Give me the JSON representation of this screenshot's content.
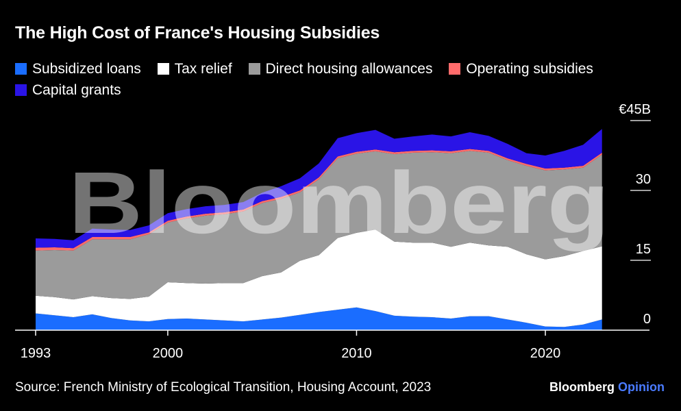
{
  "title": "The High Cost of France's Housing Subsidies",
  "source": "Source: French Ministry of Ecological Transition, Housing Account, 2023",
  "brand": {
    "name": "Bloomberg",
    "suffix": "Opinion"
  },
  "watermark": "Bloomberg",
  "chart_data": {
    "type": "area",
    "stacked": true,
    "title": "The High Cost of France's Housing Subsidies",
    "legend_position": "top",
    "ylim": [
      0,
      45
    ],
    "y_ticks": [
      0,
      15,
      30,
      45
    ],
    "y_tick_labels": [
      "0",
      "15",
      "30",
      "€45B"
    ],
    "xlim": [
      1993,
      2023
    ],
    "x_ticks": [
      1993,
      2000,
      2010,
      2020
    ],
    "x_tick_labels": [
      "1993",
      "2000",
      "2010",
      "2020"
    ],
    "x": [
      1993,
      1994,
      1995,
      1996,
      1997,
      1998,
      1999,
      2000,
      2001,
      2002,
      2003,
      2004,
      2005,
      2006,
      2007,
      2008,
      2009,
      2010,
      2011,
      2012,
      2013,
      2014,
      2015,
      2016,
      2017,
      2018,
      2019,
      2020,
      2021,
      2022,
      2023
    ],
    "series": [
      {
        "name": "Subsidized loans",
        "color": "#1a6dff",
        "values": [
          3.6,
          3.2,
          2.8,
          3.4,
          2.6,
          2.1,
          1.9,
          2.4,
          2.5,
          2.3,
          2.1,
          1.9,
          2.3,
          2.7,
          3.3,
          3.9,
          4.4,
          4.9,
          4.1,
          3.1,
          2.9,
          2.8,
          2.5,
          3.0,
          3.0,
          2.3,
          1.6,
          0.8,
          0.7,
          1.2,
          2.3
        ]
      },
      {
        "name": "Tax relief",
        "color": "#ffffff",
        "values": [
          3.8,
          3.9,
          3.8,
          3.9,
          4.3,
          4.6,
          5.3,
          7.9,
          7.6,
          7.7,
          8.0,
          8.2,
          9.3,
          9.7,
          11.6,
          12.2,
          15.4,
          16.0,
          17.5,
          15.9,
          15.9,
          16.0,
          15.4,
          15.8,
          15.2,
          15.6,
          14.7,
          14.4,
          15.2,
          15.8,
          15.7
        ]
      },
      {
        "name": "Direct housing allowances",
        "color": "#9b9b9b",
        "values": [
          9.7,
          10.1,
          10.5,
          12.2,
          12.6,
          12.8,
          13.4,
          12.8,
          13.9,
          14.6,
          14.8,
          15.4,
          15.7,
          15.8,
          14.7,
          16.3,
          17.1,
          17.0,
          16.8,
          18.8,
          19.3,
          19.4,
          20.1,
          19.7,
          19.9,
          18.6,
          19.0,
          19.1,
          18.6,
          17.9,
          19.7
        ]
      },
      {
        "name": "Operating subsidies",
        "color": "#ff6b6b",
        "values": [
          0.6,
          0.6,
          0.5,
          0.5,
          0.5,
          0.5,
          0.4,
          0.4,
          0.4,
          0.4,
          0.4,
          0.4,
          0.4,
          0.4,
          0.4,
          0.4,
          0.4,
          0.4,
          0.4,
          0.4,
          0.4,
          0.4,
          0.4,
          0.4,
          0.4,
          0.4,
          0.4,
          0.4,
          0.4,
          0.4,
          0.4
        ]
      },
      {
        "name": "Capital grants",
        "color": "#2a14e6",
        "values": [
          2.0,
          1.8,
          1.7,
          1.8,
          1.6,
          1.5,
          1.5,
          1.6,
          1.6,
          1.6,
          1.6,
          1.6,
          1.8,
          2.3,
          2.6,
          3.0,
          3.9,
          4.0,
          4.2,
          2.9,
          3.1,
          3.4,
          3.2,
          3.6,
          3.2,
          3.1,
          2.3,
          2.8,
          3.6,
          4.5,
          5.1
        ]
      }
    ]
  }
}
